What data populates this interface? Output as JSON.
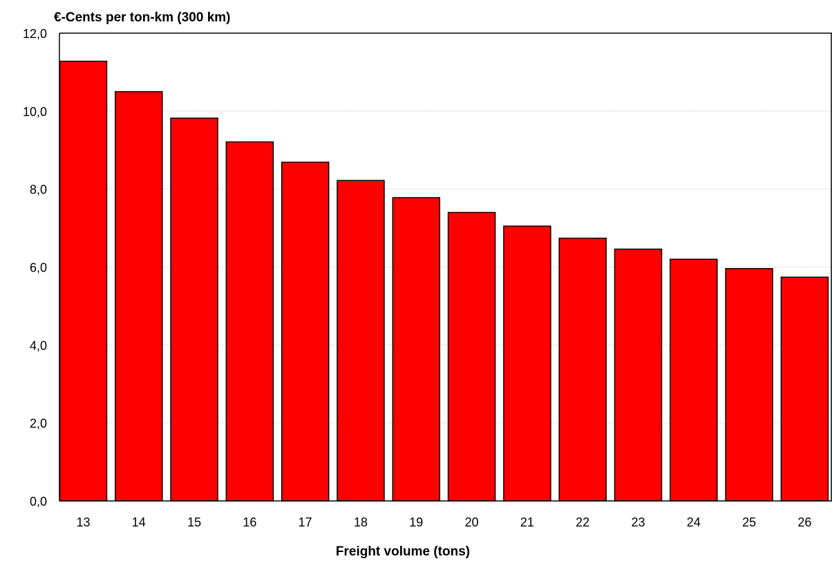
{
  "chart_data": {
    "type": "bar",
    "ylabel": "€-Cents per ton-km (300 km)",
    "xlabel": "Freight volume (tons)",
    "categories": [
      "13",
      "14",
      "15",
      "16",
      "17",
      "18",
      "19",
      "20",
      "21",
      "22",
      "23",
      "24",
      "25",
      "26"
    ],
    "values": [
      11.28,
      10.5,
      9.82,
      9.21,
      8.69,
      8.22,
      7.78,
      7.4,
      7.05,
      6.74,
      6.46,
      6.2,
      5.96,
      5.74
    ],
    "ylim": [
      0,
      12
    ],
    "yticks": [
      "0,0",
      "2,0",
      "4,0",
      "6,0",
      "8,0",
      "10,0",
      "12,0"
    ],
    "grid": true,
    "colors": {
      "bar_fill": "#ff0000",
      "bar_stroke": "#000000",
      "grid": "#c8c8c8",
      "axis": "#000000"
    }
  }
}
